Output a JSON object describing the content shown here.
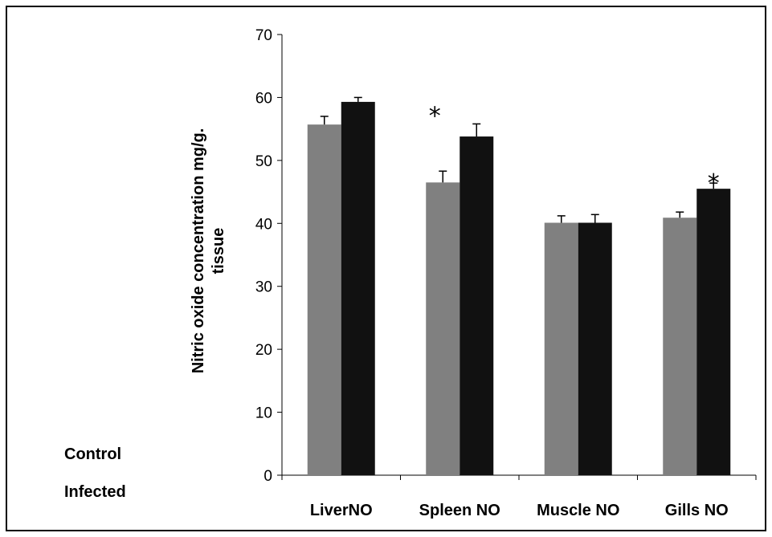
{
  "chart_data": {
    "type": "bar",
    "title": "",
    "ylabel_line1": "Nitric oxide concentration mg/g.",
    "ylabel_line2": "tissue",
    "xlabel": "",
    "ylim": [
      0,
      70
    ],
    "yticks": [
      0,
      10,
      20,
      30,
      40,
      50,
      60,
      70
    ],
    "categories": [
      "LiverNO",
      "Spleen NO",
      "Muscle NO",
      "Gills NO"
    ],
    "series": [
      {
        "name": "Control",
        "color": "#808080",
        "values": [
          55.7,
          46.5,
          40.1,
          40.9
        ],
        "errors": [
          1.3,
          1.8,
          1.1,
          0.9
        ]
      },
      {
        "name": "Infected",
        "color": "#111111",
        "values": [
          59.3,
          53.8,
          40.1,
          45.5
        ],
        "errors": [
          0.7,
          2.0,
          1.3,
          0.9
        ]
      }
    ],
    "annotations": [
      {
        "category_index": 1,
        "text": "*"
      },
      {
        "category_index": 3,
        "text": "*"
      }
    ],
    "grid": false,
    "legend_placement": "bottom-left"
  }
}
